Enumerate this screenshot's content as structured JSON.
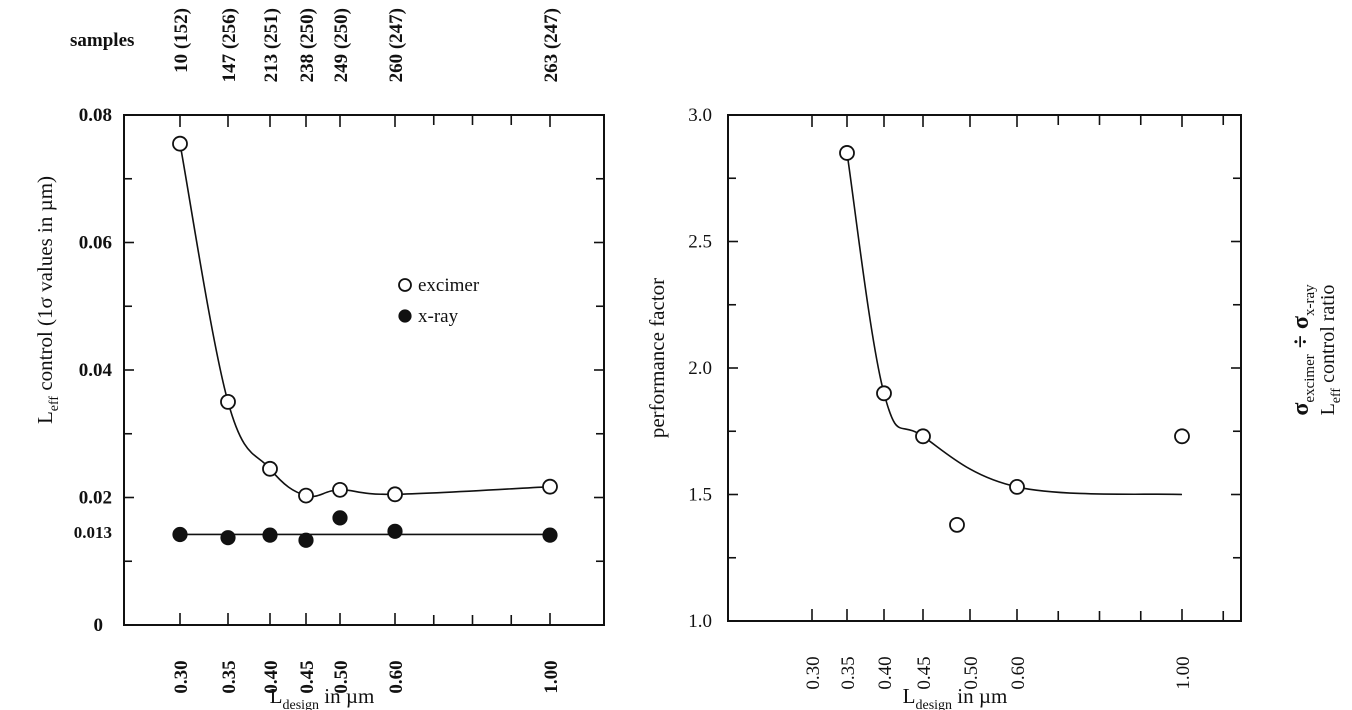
{
  "chart_data": [
    {
      "type": "scatter",
      "title": "",
      "samples_label": "samples",
      "samples": [
        {
          "x": 0.3,
          "label": "10 (152)"
        },
        {
          "x": 0.35,
          "label": "147 (256)"
        },
        {
          "x": 0.4,
          "label": "213 (251)"
        },
        {
          "x": 0.45,
          "label": "238 (250)"
        },
        {
          "x": 0.5,
          "label": "249 (250)"
        },
        {
          "x": 0.6,
          "label": "260 (247)"
        },
        {
          "x": 1.0,
          "label": "263 (247)"
        }
      ],
      "xlabel": {
        "main": "L",
        "sub": "design",
        "rest": " in µm"
      },
      "ylabel": {
        "main": "L",
        "sub": "eff",
        "rest": " control (1σ values in µm)"
      },
      "x_ticks": [
        "0.30",
        "0.35",
        "0.40",
        "0.45",
        "0.50",
        "0.60",
        "1.00"
      ],
      "y_ticks": [
        {
          "v": 0,
          "label": "0"
        },
        {
          "v": 0.02,
          "label": "0.02"
        },
        {
          "v": 0.04,
          "label": "0.04"
        },
        {
          "v": 0.06,
          "label": "0.06"
        },
        {
          "v": 0.08,
          "label": "0.08"
        }
      ],
      "extra_y_label": {
        "v": 0.013,
        "label": "0.013"
      },
      "ylim": [
        0,
        0.08
      ],
      "grid": false,
      "legend_position": "middle-right",
      "series": [
        {
          "name": "excimer",
          "marker": "open-circle",
          "x": [
            0.3,
            0.35,
            0.4,
            0.45,
            0.5,
            0.6,
            1.0
          ],
          "y": [
            0.0755,
            0.035,
            0.0245,
            0.0203,
            0.0212,
            0.0205,
            0.0217
          ]
        },
        {
          "name": "x-ray",
          "marker": "filled-circle",
          "x": [
            0.3,
            0.35,
            0.4,
            0.45,
            0.5,
            0.6,
            1.0
          ],
          "y": [
            0.0142,
            0.0137,
            0.0141,
            0.0133,
            0.0168,
            0.0147,
            0.0141
          ]
        }
      ]
    },
    {
      "type": "scatter",
      "title": "",
      "xlabel": {
        "main": "L",
        "sub": "design",
        "rest": " in µm"
      },
      "ylabel": "performance factor",
      "ylabel_right": {
        "line1": {
          "a": "σ",
          "a_sub": "excimer",
          "op": " ÷ ",
          "b": "σ",
          "b_sub": "x-ray"
        },
        "line2": {
          "main": "L",
          "sub": "eff",
          "rest": " control ratio"
        }
      },
      "x_ticks": [
        "0.30",
        "0.35",
        "0.40",
        "0.45",
        "0.50",
        "0.60",
        "1.00"
      ],
      "y_ticks": [
        {
          "v": 1.0,
          "label": "1.0"
        },
        {
          "v": 1.5,
          "label": "1.5"
        },
        {
          "v": 2.0,
          "label": "2.0"
        },
        {
          "v": 2.5,
          "label": "2.5"
        },
        {
          "v": 3.0,
          "label": "3.0"
        }
      ],
      "ylim": [
        1.0,
        3.0
      ],
      "grid": false,
      "series": [
        {
          "marker": "open-circle",
          "x": [
            0.35,
            0.4,
            0.45,
            0.5,
            0.6,
            1.0
          ],
          "y": [
            2.85,
            1.9,
            1.73,
            1.38,
            1.53,
            1.73
          ]
        }
      ],
      "fit_curve": {
        "x": [
          0.35,
          0.4,
          0.45,
          0.6,
          1.0
        ],
        "y": [
          2.85,
          1.9,
          1.73,
          1.53,
          1.5
        ]
      }
    }
  ]
}
